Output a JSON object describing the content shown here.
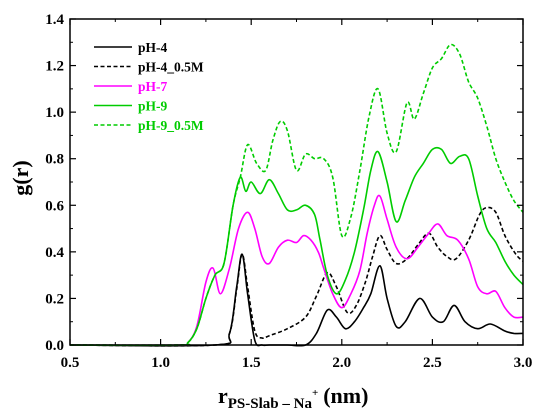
{
  "chart_data": {
    "type": "line",
    "title": "",
    "xlabel": {
      "main": "r",
      "sub": "PS-Slab – Na",
      "sup": "+",
      "unit": "(nm)"
    },
    "ylabel": "g(r)",
    "xlim": [
      0.5,
      3.0
    ],
    "ylim": [
      0.0,
      1.4
    ],
    "x_ticks": [
      0.5,
      1.0,
      1.5,
      2.0,
      2.5,
      3.0
    ],
    "y_ticks": [
      0.0,
      0.2,
      0.4,
      0.6,
      0.8,
      1.0,
      1.2,
      1.4
    ],
    "grid": false,
    "legend_position": "top-left",
    "series": [
      {
        "name": "pH-4",
        "color": "#000000",
        "dash": "solid",
        "x": [
          0.5,
          1.3,
          1.38,
          1.42,
          1.45,
          1.48,
          1.52,
          1.56,
          1.6,
          1.7,
          1.8,
          1.86,
          1.92,
          1.97,
          2.02,
          2.07,
          2.12,
          2.16,
          2.21,
          2.25,
          2.3,
          2.35,
          2.43,
          2.5,
          2.56,
          2.62,
          2.68,
          2.75,
          2.82,
          2.9,
          2.95,
          3.0
        ],
        "y": [
          0.0,
          0.0,
          0.05,
          0.25,
          0.39,
          0.22,
          0.02,
          0.0,
          0.0,
          0.0,
          0.0,
          0.05,
          0.15,
          0.12,
          0.07,
          0.1,
          0.16,
          0.22,
          0.34,
          0.2,
          0.08,
          0.1,
          0.2,
          0.12,
          0.1,
          0.17,
          0.1,
          0.07,
          0.09,
          0.06,
          0.05,
          0.05
        ]
      },
      {
        "name": "pH-4_0.5M",
        "color": "#000000",
        "dash": "dashed",
        "x": [
          0.5,
          1.3,
          1.38,
          1.42,
          1.45,
          1.48,
          1.52,
          1.56,
          1.6,
          1.7,
          1.8,
          1.86,
          1.92,
          1.97,
          2.03,
          2.08,
          2.13,
          2.17,
          2.21,
          2.25,
          2.3,
          2.36,
          2.42,
          2.48,
          2.53,
          2.58,
          2.63,
          2.7,
          2.76,
          2.8,
          2.85,
          2.9,
          2.96,
          3.0
        ],
        "y": [
          0.0,
          0.0,
          0.05,
          0.24,
          0.39,
          0.25,
          0.06,
          0.03,
          0.04,
          0.07,
          0.12,
          0.21,
          0.31,
          0.25,
          0.14,
          0.17,
          0.27,
          0.38,
          0.47,
          0.41,
          0.35,
          0.37,
          0.43,
          0.48,
          0.42,
          0.38,
          0.37,
          0.45,
          0.56,
          0.59,
          0.57,
          0.47,
          0.39,
          0.36
        ]
      },
      {
        "name": "pH-7",
        "color": "#ff00ff",
        "dash": "solid",
        "x": [
          0.5,
          1.1,
          1.15,
          1.2,
          1.25,
          1.29,
          1.33,
          1.38,
          1.43,
          1.48,
          1.52,
          1.56,
          1.6,
          1.65,
          1.7,
          1.75,
          1.79,
          1.83,
          1.87,
          1.9,
          1.95,
          2.0,
          2.05,
          2.1,
          2.14,
          2.18,
          2.21,
          2.25,
          2.3,
          2.36,
          2.42,
          2.48,
          2.53,
          2.58,
          2.64,
          2.7,
          2.75,
          2.8,
          2.85,
          2.9,
          2.95,
          3.0
        ],
        "y": [
          0.0,
          0.0,
          0.01,
          0.08,
          0.27,
          0.33,
          0.22,
          0.33,
          0.5,
          0.57,
          0.5,
          0.38,
          0.35,
          0.42,
          0.45,
          0.44,
          0.47,
          0.45,
          0.4,
          0.33,
          0.22,
          0.16,
          0.22,
          0.32,
          0.48,
          0.6,
          0.64,
          0.54,
          0.42,
          0.37,
          0.42,
          0.48,
          0.52,
          0.47,
          0.45,
          0.37,
          0.25,
          0.22,
          0.23,
          0.16,
          0.12,
          0.12
        ]
      },
      {
        "name": "pH-9",
        "color": "#00cc00",
        "dash": "solid",
        "x": [
          0.5,
          1.1,
          1.15,
          1.2,
          1.25,
          1.3,
          1.35,
          1.4,
          1.44,
          1.47,
          1.5,
          1.55,
          1.6,
          1.65,
          1.7,
          1.75,
          1.8,
          1.85,
          1.88,
          1.92,
          1.97,
          2.02,
          2.07,
          2.12,
          2.16,
          2.2,
          2.25,
          2.3,
          2.35,
          2.4,
          2.45,
          2.5,
          2.55,
          2.6,
          2.65,
          2.7,
          2.75,
          2.8,
          2.85,
          2.9,
          2.95,
          3.0
        ],
        "y": [
          0.0,
          0.0,
          0.01,
          0.07,
          0.2,
          0.3,
          0.35,
          0.6,
          0.72,
          0.66,
          0.7,
          0.65,
          0.71,
          0.65,
          0.58,
          0.58,
          0.6,
          0.56,
          0.45,
          0.3,
          0.22,
          0.28,
          0.4,
          0.58,
          0.75,
          0.83,
          0.7,
          0.53,
          0.62,
          0.72,
          0.78,
          0.84,
          0.84,
          0.78,
          0.81,
          0.8,
          0.64,
          0.5,
          0.44,
          0.36,
          0.3,
          0.26
        ]
      },
      {
        "name": "pH-9_0.5M",
        "color": "#00cc00",
        "dash": "dashed",
        "x": [
          0.5,
          1.1,
          1.15,
          1.2,
          1.25,
          1.3,
          1.35,
          1.4,
          1.44,
          1.48,
          1.53,
          1.58,
          1.62,
          1.66,
          1.7,
          1.75,
          1.8,
          1.85,
          1.9,
          1.95,
          2.0,
          2.05,
          2.1,
          2.15,
          2.2,
          2.25,
          2.3,
          2.36,
          2.4,
          2.45,
          2.5,
          2.55,
          2.6,
          2.65,
          2.7,
          2.75,
          2.8,
          2.85,
          2.9,
          2.95,
          3.0
        ],
        "y": [
          0.0,
          0.0,
          0.01,
          0.07,
          0.2,
          0.3,
          0.35,
          0.6,
          0.72,
          0.86,
          0.78,
          0.75,
          0.88,
          0.96,
          0.92,
          0.75,
          0.82,
          0.8,
          0.8,
          0.72,
          0.47,
          0.55,
          0.75,
          0.98,
          1.1,
          0.91,
          0.83,
          1.04,
          0.97,
          1.08,
          1.19,
          1.23,
          1.29,
          1.25,
          1.13,
          1.06,
          0.94,
          0.8,
          0.7,
          0.62,
          0.57
        ]
      }
    ]
  }
}
